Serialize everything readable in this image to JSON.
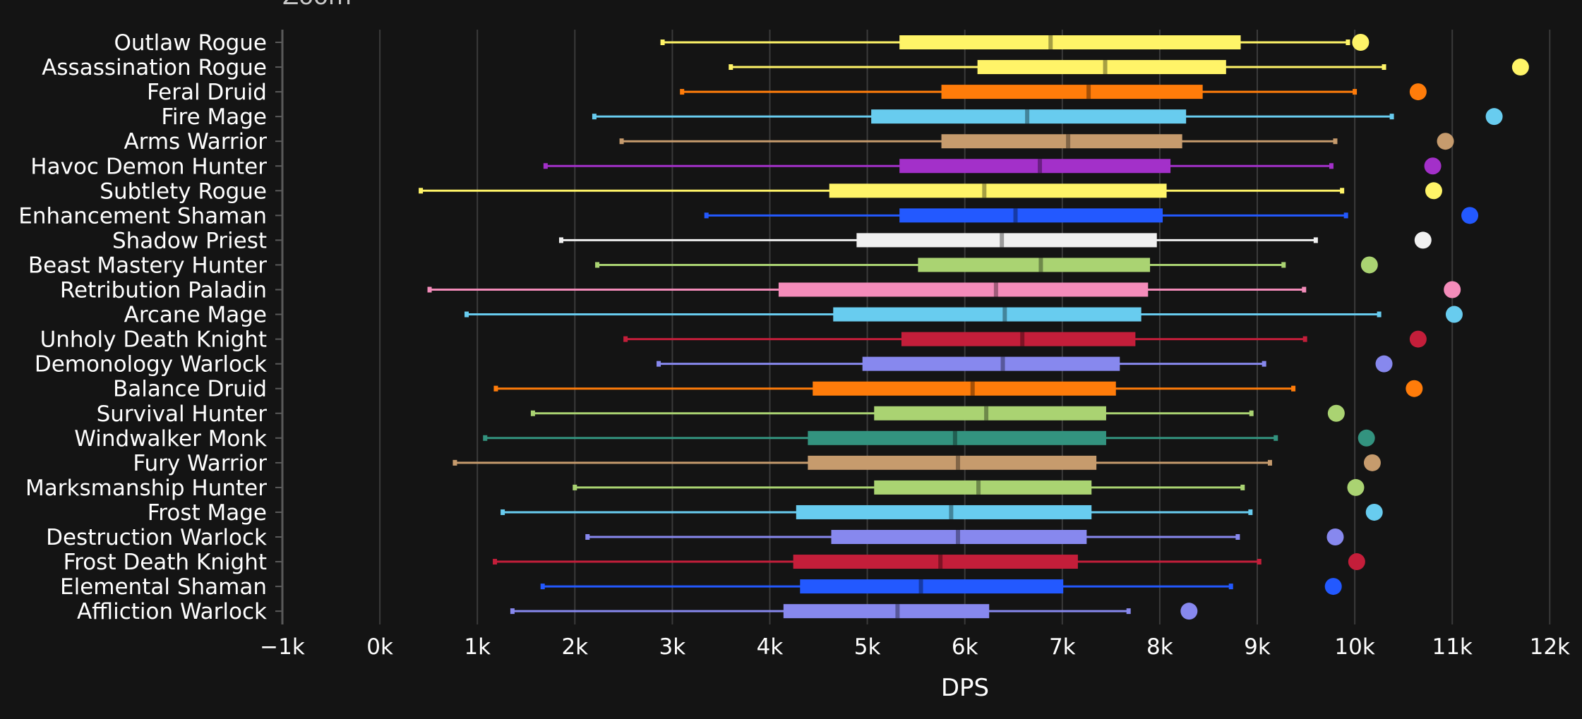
{
  "chart_data": {
    "type": "boxplot",
    "title": "Zoom",
    "xlabel": "DPS",
    "ylabel": "",
    "xlim": [
      -1000,
      12000
    ],
    "tick_values": [
      -1000,
      0,
      1000,
      2000,
      3000,
      4000,
      5000,
      6000,
      7000,
      8000,
      9000,
      10000,
      11000,
      12000
    ],
    "tick_labels": [
      "−1k",
      "0k",
      "1k",
      "2k",
      "3k",
      "4k",
      "5k",
      "6k",
      "7k",
      "8k",
      "9k",
      "10k",
      "11k",
      "12k"
    ],
    "grid": true,
    "series": [
      {
        "name": "Outlaw Rogue",
        "color": "#fff468",
        "min": 2900,
        "q1": 5330,
        "median": 6880,
        "q3": 8830,
        "max": 9930,
        "outlier": 10060
      },
      {
        "name": "Assassination Rogue",
        "color": "#fff468",
        "min": 3600,
        "q1": 6130,
        "median": 7440,
        "q3": 8680,
        "max": 10300,
        "outlier": 11700
      },
      {
        "name": "Feral Druid",
        "color": "#ff7c0a",
        "min": 3100,
        "q1": 5760,
        "median": 7270,
        "q3": 8440,
        "max": 10000,
        "outlier": 10650
      },
      {
        "name": "Fire Mage",
        "color": "#68ccef",
        "min": 2200,
        "q1": 5040,
        "median": 6640,
        "q3": 8270,
        "max": 10380,
        "outlier": 11430
      },
      {
        "name": "Arms Warrior",
        "color": "#c69b6d",
        "min": 2480,
        "q1": 5760,
        "median": 7060,
        "q3": 8230,
        "max": 9800,
        "outlier": 10930
      },
      {
        "name": "Havoc Demon Hunter",
        "color": "#a330c9",
        "min": 1700,
        "q1": 5330,
        "median": 6770,
        "q3": 8110,
        "max": 9760,
        "outlier": 10800
      },
      {
        "name": "Subtlety Rogue",
        "color": "#fff468",
        "min": 420,
        "q1": 4610,
        "median": 6200,
        "q3": 8070,
        "max": 9870,
        "outlier": 10810
      },
      {
        "name": "Enhancement Shaman",
        "color": "#2359ff",
        "min": 3350,
        "q1": 5330,
        "median": 6520,
        "q3": 8030,
        "max": 9910,
        "outlier": 11180
      },
      {
        "name": "Shadow Priest",
        "color": "#f0f0f0",
        "min": 1860,
        "q1": 4890,
        "median": 6380,
        "q3": 7970,
        "max": 9600,
        "outlier": 10700
      },
      {
        "name": "Beast Mastery Hunter",
        "color": "#aad372",
        "min": 2230,
        "q1": 5520,
        "median": 6780,
        "q3": 7900,
        "max": 9270,
        "outlier": 10150
      },
      {
        "name": "Retribution Paladin",
        "color": "#f48cba",
        "min": 510,
        "q1": 4090,
        "median": 6320,
        "q3": 7880,
        "max": 9480,
        "outlier": 11000
      },
      {
        "name": "Arcane Mage",
        "color": "#68ccef",
        "min": 890,
        "q1": 4650,
        "median": 6410,
        "q3": 7810,
        "max": 10250,
        "outlier": 11020
      },
      {
        "name": "Unholy Death Knight",
        "color": "#c41e3a",
        "min": 2520,
        "q1": 5350,
        "median": 6590,
        "q3": 7750,
        "max": 9490,
        "outlier": 10650
      },
      {
        "name": "Demonology Warlock",
        "color": "#8788ee",
        "min": 2860,
        "q1": 4950,
        "median": 6390,
        "q3": 7590,
        "max": 9070,
        "outlier": 10300
      },
      {
        "name": "Balance Druid",
        "color": "#ff7c0a",
        "min": 1190,
        "q1": 4440,
        "median": 6080,
        "q3": 7550,
        "max": 9370,
        "outlier": 10610
      },
      {
        "name": "Survival Hunter",
        "color": "#aad372",
        "min": 1570,
        "q1": 5070,
        "median": 6220,
        "q3": 7450,
        "max": 8940,
        "outlier": 9810
      },
      {
        "name": "Windwalker Monk",
        "color": "#33937f",
        "min": 1080,
        "q1": 4390,
        "median": 5900,
        "q3": 7450,
        "max": 9190,
        "outlier": 10120
      },
      {
        "name": "Fury Warrior",
        "color": "#c69b6d",
        "min": 770,
        "q1": 4390,
        "median": 5930,
        "q3": 7350,
        "max": 9130,
        "outlier": 10180
      },
      {
        "name": "Marksmanship Hunter",
        "color": "#aad372",
        "min": 2000,
        "q1": 5070,
        "median": 6140,
        "q3": 7300,
        "max": 8850,
        "outlier": 10010
      },
      {
        "name": "Frost Mage",
        "color": "#68ccef",
        "min": 1260,
        "q1": 4270,
        "median": 5860,
        "q3": 7300,
        "max": 8930,
        "outlier": 10200
      },
      {
        "name": "Destruction Warlock",
        "color": "#8788ee",
        "min": 2130,
        "q1": 4630,
        "median": 5930,
        "q3": 7250,
        "max": 8800,
        "outlier": 9800
      },
      {
        "name": "Frost Death Knight",
        "color": "#c41e3a",
        "min": 1180,
        "q1": 4240,
        "median": 5750,
        "q3": 7160,
        "max": 9020,
        "outlier": 10020
      },
      {
        "name": "Elemental Shaman",
        "color": "#2359ff",
        "min": 1670,
        "q1": 4310,
        "median": 5550,
        "q3": 7010,
        "max": 8730,
        "outlier": 9780
      },
      {
        "name": "Affliction Warlock",
        "color": "#8788ee",
        "min": 1360,
        "q1": 4140,
        "median": 5310,
        "q3": 6250,
        "max": 7680,
        "outlier": 8300
      }
    ]
  }
}
